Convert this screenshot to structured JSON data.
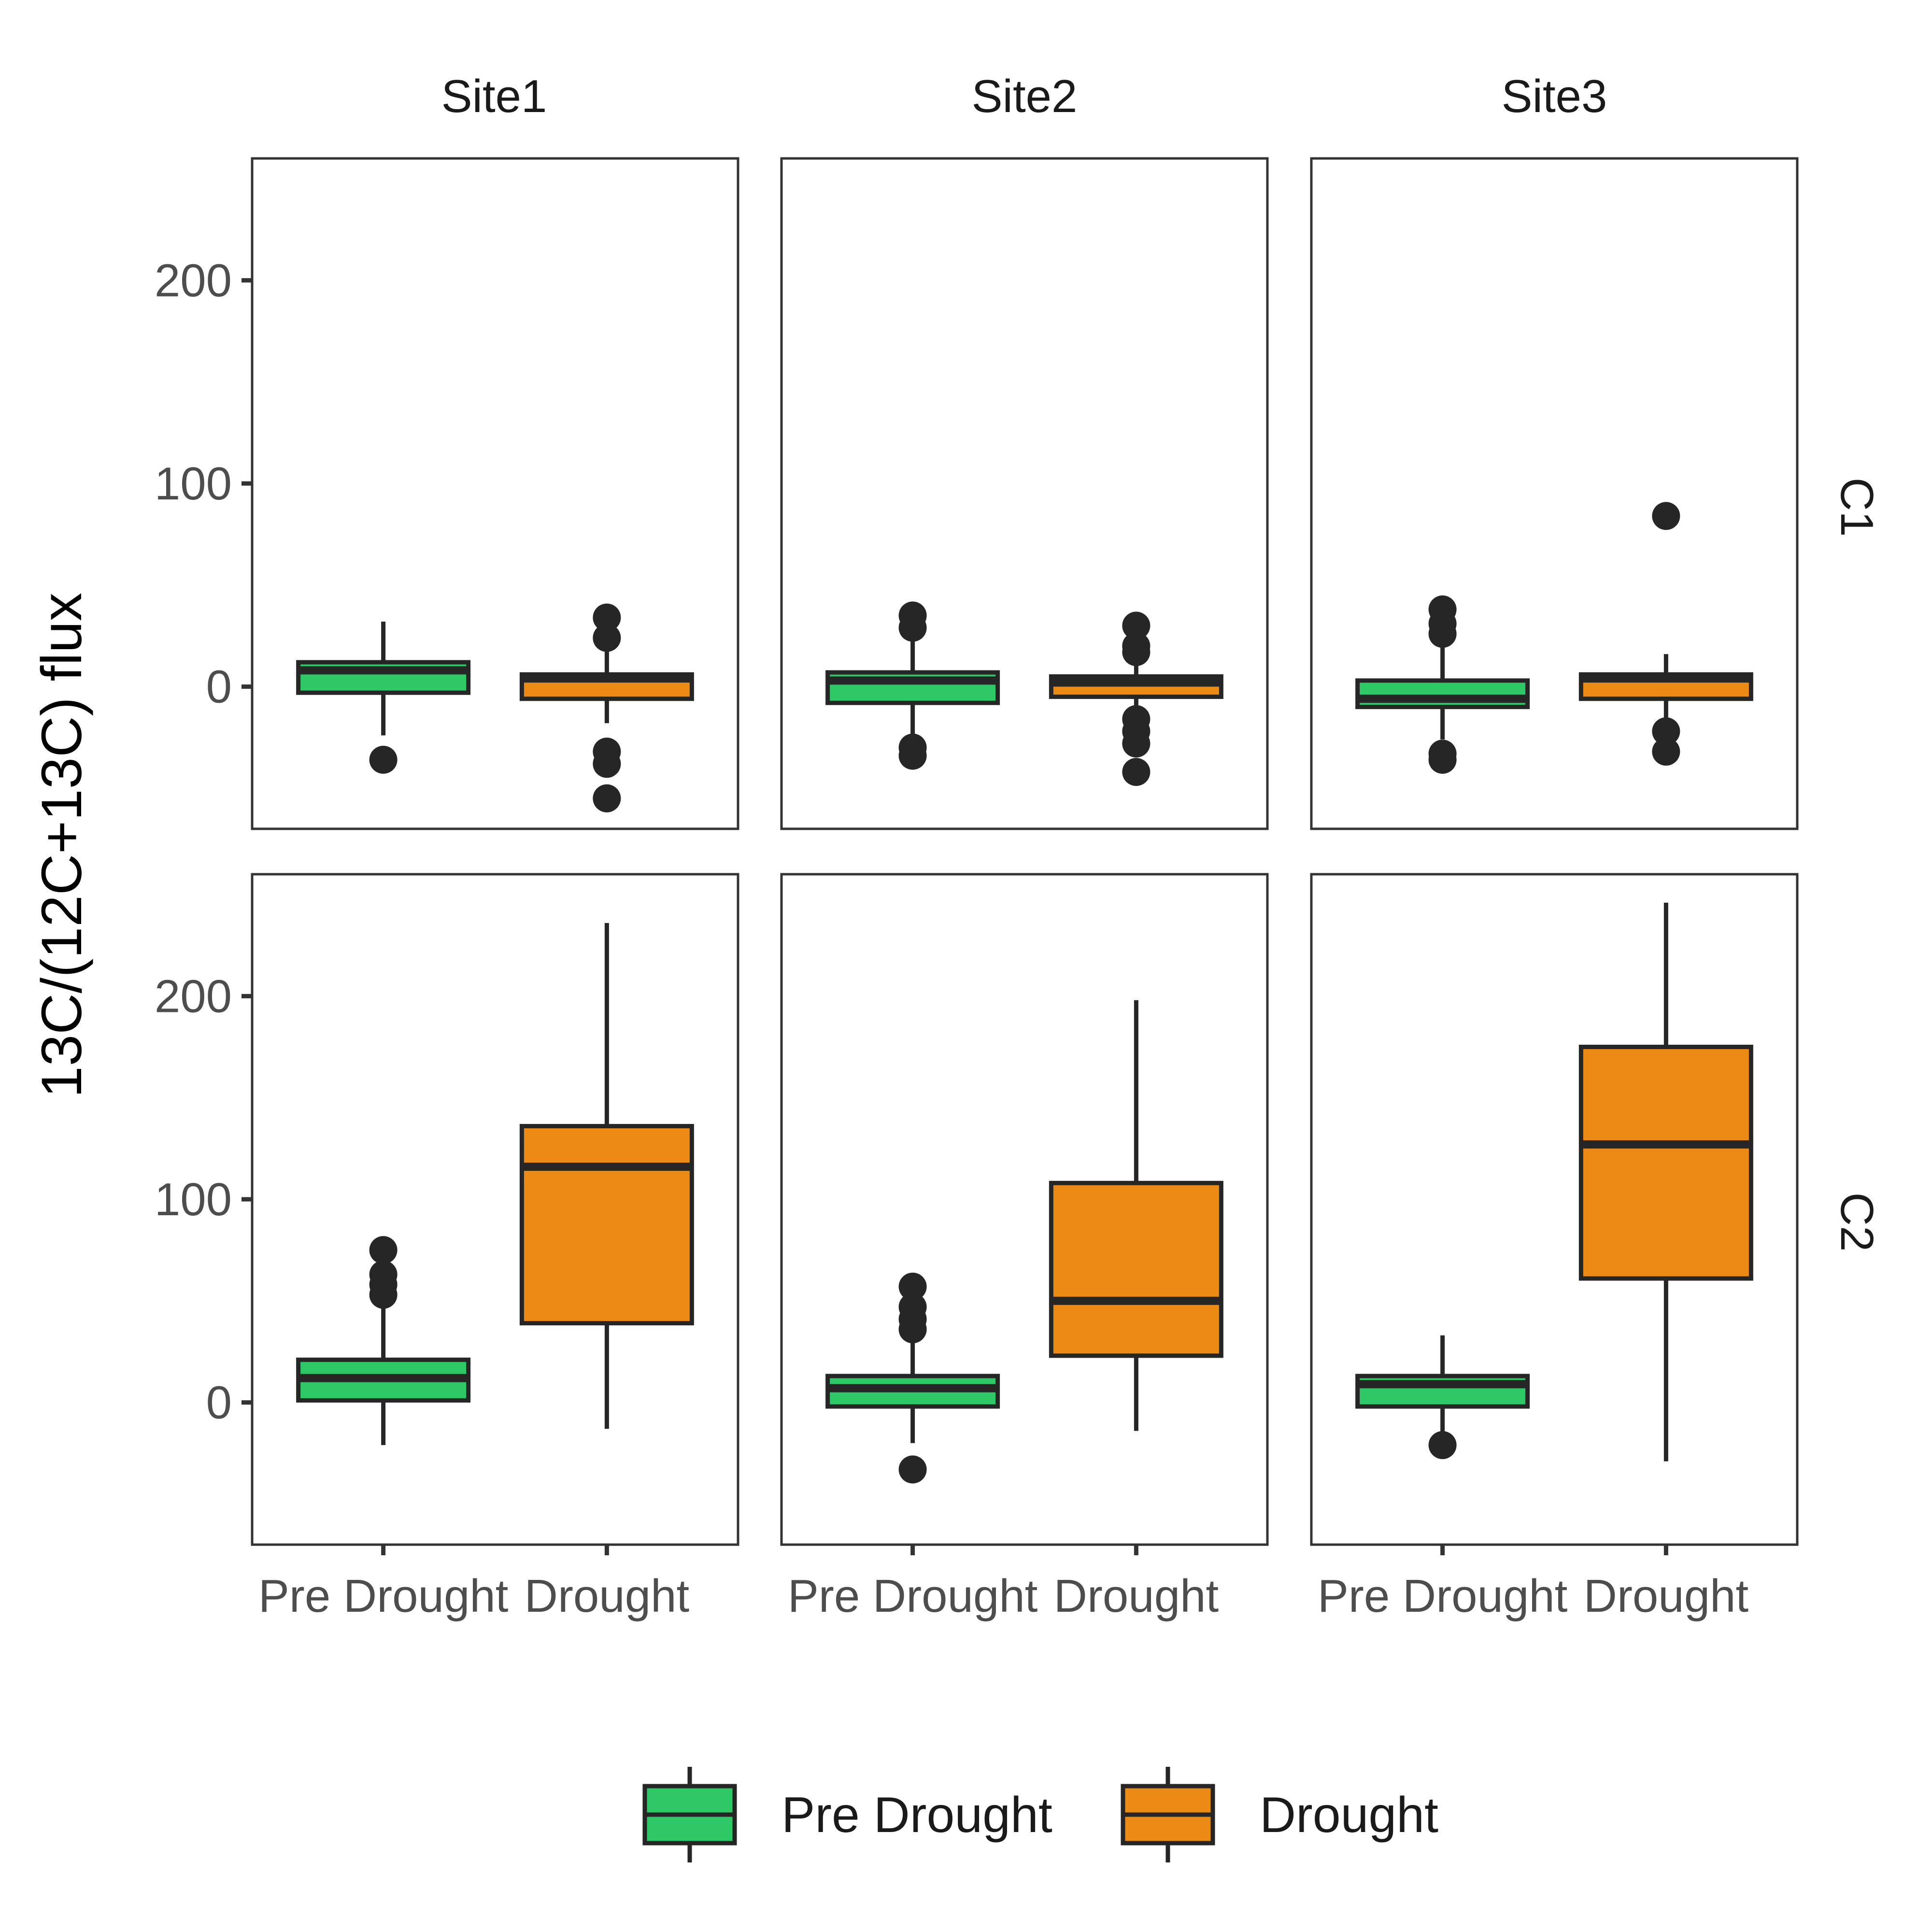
{
  "chart_data": {
    "type": "boxplot",
    "ylabel": "13C/(12C+13C) flux",
    "xlabel": "",
    "title": "",
    "ylim": [
      -70,
      260
    ],
    "yticks": [
      0,
      100,
      200
    ],
    "categories": [
      "Pre Drought",
      "Drought"
    ],
    "facet_cols": [
      "Site1",
      "Site2",
      "Site3"
    ],
    "facet_rows": [
      "C1",
      "C2"
    ],
    "colors": {
      "Pre Drought": "#2ec866",
      "Drought": "#eb8a14"
    },
    "legend": {
      "position": "bottom",
      "entries": [
        "Pre Drought",
        "Drought"
      ]
    },
    "panels": [
      {
        "row": "C1",
        "col": "Site1",
        "boxes": [
          {
            "group": "Pre Drought",
            "min": -24,
            "q1": -3,
            "median": 8,
            "q3": 12,
            "max": 32,
            "outliers": [
              -36
            ]
          },
          {
            "group": "Drought",
            "min": -18,
            "q1": -6,
            "median": 4,
            "q3": 6,
            "max": 24,
            "outliers": [
              34,
              24,
              -32,
              -38,
              -55
            ]
          }
        ]
      },
      {
        "row": "C1",
        "col": "Site2",
        "boxes": [
          {
            "group": "Pre Drought",
            "min": -26,
            "q1": -8,
            "median": 3,
            "q3": 7,
            "max": 28,
            "outliers": [
              35,
              29,
              -30,
              -34
            ]
          },
          {
            "group": "Drought",
            "min": -12,
            "q1": -5,
            "median": 2,
            "q3": 5,
            "max": 16,
            "outliers": [
              30,
              20,
              17,
              -16,
              -22,
              -28,
              -42
            ]
          }
        ]
      },
      {
        "row": "C1",
        "col": "Site3",
        "boxes": [
          {
            "group": "Pre Drought",
            "min": -26,
            "q1": -10,
            "median": -6,
            "q3": 3,
            "max": 26,
            "outliers": [
              38,
              31,
              26,
              -33,
              -36
            ]
          },
          {
            "group": "Drought",
            "min": -16,
            "q1": -6,
            "median": 4,
            "q3": 6,
            "max": 16,
            "outliers": [
              84,
              -22,
              -32
            ]
          }
        ]
      },
      {
        "row": "C2",
        "col": "Site1",
        "boxes": [
          {
            "group": "Pre Drought",
            "min": -21,
            "q1": 1,
            "median": 12,
            "q3": 21,
            "max": 48,
            "outliers": [
              75,
              63,
              58,
              53
            ]
          },
          {
            "group": "Drought",
            "min": -13,
            "q1": 39,
            "median": 116,
            "q3": 136,
            "max": 236,
            "outliers": []
          }
        ]
      },
      {
        "row": "C2",
        "col": "Site2",
        "boxes": [
          {
            "group": "Pre Drought",
            "min": -20,
            "q1": -2,
            "median": 7,
            "q3": 13,
            "max": 32,
            "outliers": [
              57,
              47,
              41,
              36,
              -33
            ]
          },
          {
            "group": "Drought",
            "min": -14,
            "q1": 23,
            "median": 50,
            "q3": 108,
            "max": 198,
            "outliers": []
          }
        ]
      },
      {
        "row": "C2",
        "col": "Site3",
        "boxes": [
          {
            "group": "Pre Drought",
            "min": -15,
            "q1": -2,
            "median": 9,
            "q3": 13,
            "max": 33,
            "outliers": [
              -21
            ]
          },
          {
            "group": "Drought",
            "min": -29,
            "q1": 61,
            "median": 127,
            "q3": 175,
            "max": 246,
            "outliers": []
          }
        ]
      }
    ]
  }
}
